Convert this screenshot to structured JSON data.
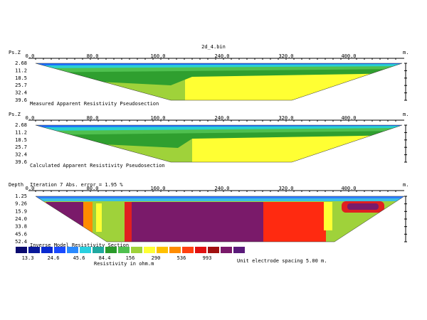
{
  "title": "2d_4.bin",
  "panels": [
    {
      "axis_label": "Ps.Z",
      "x_ticks": [
        "0.0",
        "80.0",
        "160.0",
        "240.0",
        "320.0",
        "400.0"
      ],
      "x_unit": "m.",
      "depths": [
        "2.68",
        "11.2",
        "18.5",
        "25.7",
        "32.4",
        "39.6"
      ],
      "caption": "Measured Apparent Resistivity Pseudosection"
    },
    {
      "axis_label": "Ps.Z",
      "x_ticks": [
        "0.0",
        "80.0",
        "160.0",
        "240.0",
        "320.0",
        "400.0"
      ],
      "x_unit": "m.",
      "depths": [
        "2.68",
        "11.2",
        "18.5",
        "25.7",
        "32.4",
        "39.6"
      ],
      "caption": "Calculated Apparent Resistivity Pseudosection"
    },
    {
      "axis_label": "Depth",
      "header": "Iteration 7 Abs. error = 1.95 %",
      "x_ticks": [
        "0.0",
        "80.0",
        "160.0",
        "240.0",
        "320.0",
        "400.0"
      ],
      "x_unit": "m.",
      "depths": [
        "1.25",
        "9.26",
        "15.9",
        "24.0",
        "33.8",
        "45.6",
        "52.4"
      ],
      "caption": "Inverse Model Resistivity Section"
    }
  ],
  "legend": {
    "values": [
      "13.3",
      "24.6",
      "45.6",
      "84.4",
      "156",
      "290",
      "536",
      "993"
    ],
    "unit_label": "Resistivity in ohm.m"
  },
  "note": "Unit electrode spacing 5.00 m."
}
